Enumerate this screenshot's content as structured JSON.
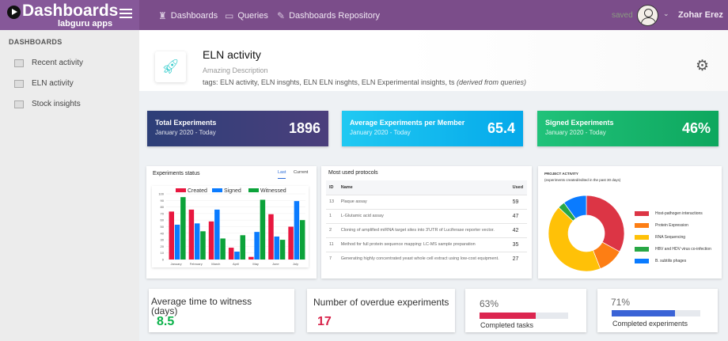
{
  "app": {
    "title": "Dashboards",
    "subtitle": "labguru apps"
  },
  "nav": [
    {
      "label": "Dashboards",
      "icon": "chess-rook-icon"
    },
    {
      "label": "Queries",
      "icon": "monitor-icon"
    },
    {
      "label": "Dashboards Repository",
      "icon": "edit-icon"
    }
  ],
  "status": "saved",
  "user": {
    "name": "Zohar Erez"
  },
  "sidebar": {
    "heading": "DASHBOARDS",
    "items": [
      {
        "label": "Recent activity"
      },
      {
        "label": "ELN activity"
      },
      {
        "label": "Stock insights"
      }
    ]
  },
  "header": {
    "title": "ELN activity",
    "description": "Amazing Description",
    "tags": "tags: ELN activity, ELN insghts, ELN ELN insghts, ELN Experimental insights, ts",
    "tags_note": "(derived from queries)"
  },
  "kpis": [
    {
      "title": "Total Experiments",
      "sub": "January 2020 - Today",
      "value": "1896",
      "colors": [
        "#2d3f78",
        "#4b3f7c"
      ]
    },
    {
      "title": "Average Experiments per Member",
      "sub": "January 2020 - Today",
      "value": "65.4",
      "colors": [
        "#20c9f2",
        "#05a9ea"
      ]
    },
    {
      "title": "Signed Experiments",
      "sub": "January 2020 - Today",
      "value": "46%",
      "colors": [
        "#20c27a",
        "#0ea75e"
      ]
    }
  ],
  "experiments_status": {
    "title": "Experiments status",
    "tabs": [
      "Last",
      "Current"
    ]
  },
  "chart_data": [
    {
      "type": "bar",
      "categories": [
        "January",
        "February",
        "March",
        "April",
        "May",
        "June",
        "July"
      ],
      "ylim": [
        0,
        100
      ],
      "yticks": [
        0,
        10,
        20,
        30,
        40,
        50,
        60,
        70,
        80,
        90,
        100
      ],
      "grid": true,
      "legend": "top",
      "series": [
        {
          "name": "Created",
          "color": "#e8173f",
          "values": [
            73,
            76,
            58,
            18,
            4,
            69,
            50
          ]
        },
        {
          "name": "Signed",
          "color": "#0a7bff",
          "values": [
            53,
            55,
            76,
            12,
            42,
            35,
            89
          ]
        },
        {
          "name": "Witnessed",
          "color": "#0ca33a",
          "values": [
            95,
            43,
            32,
            37,
            91,
            30,
            60
          ]
        }
      ]
    },
    {
      "type": "pie",
      "title": "PROJECT ACTIVITY",
      "subtitle": "(experiments created/edited in the past 30 days)",
      "legend": "right",
      "labels": [
        "Host-pathogen interactions",
        "Protein Expression",
        "RNA Sequencing",
        "HBV and HDV virus co-infection",
        "B. subtilis phages"
      ],
      "values": [
        33,
        11,
        43,
        3,
        10
      ],
      "colors": [
        "#dc3545",
        "#fd7e14",
        "#ffc107",
        "#28a745",
        "#0a7bff"
      ]
    }
  ],
  "protocols": {
    "title": "Most used protocols",
    "columns": [
      "ID",
      "Name",
      "Used"
    ],
    "rows": [
      [
        "13",
        "Plaque assay",
        "59"
      ],
      [
        "1",
        "L-Glutamic acid assay",
        "47"
      ],
      [
        "2",
        "Cloning of amplified miRNA target sites into 3'UTR of Luciferase reporter vector.",
        "42"
      ],
      [
        "11",
        "Method for full protein sequence mapping: LC-MS sample preparation",
        "35"
      ],
      [
        "7",
        "Generating highly concentrated yeast whole cell extract using low-cost equipment.",
        "27"
      ]
    ]
  },
  "cards": {
    "witness": {
      "title": "Average time to witness (days)",
      "value": "8.5",
      "color": "#0bb24a"
    },
    "overdue": {
      "title": "Number of overdue experiments",
      "value": "17",
      "color": "#d8234a"
    },
    "tasks": {
      "percent": "63%",
      "value": 63,
      "label": "Completed tasks",
      "color": "#dc2650"
    },
    "experiments": {
      "percent": "71%",
      "value": 71,
      "label": "Completed experiments",
      "color": "#3a63d6"
    }
  }
}
